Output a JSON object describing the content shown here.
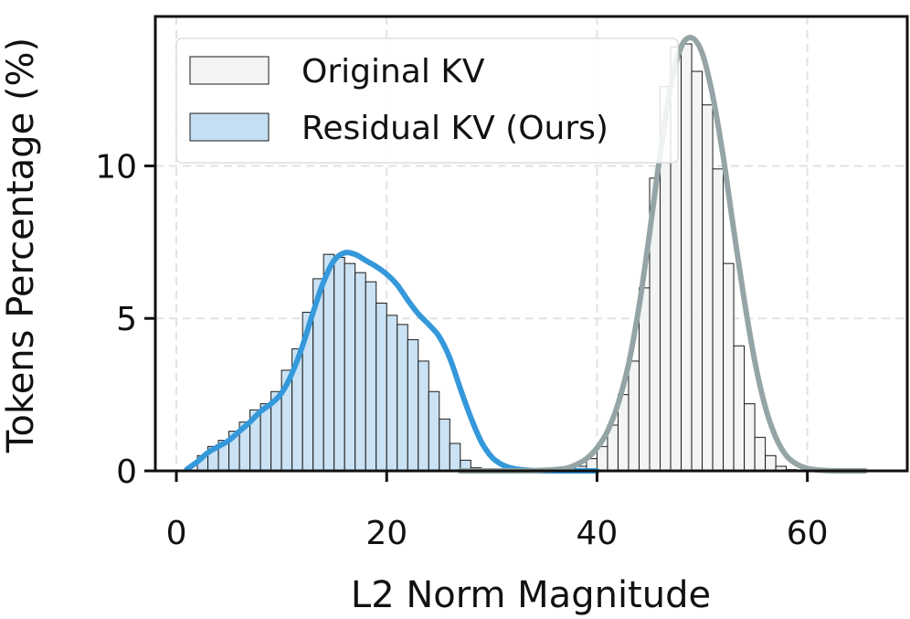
{
  "chart_data": {
    "type": "bar",
    "title": "",
    "xlabel": "L2 Norm Magnitude",
    "ylabel": "Tokens Percentage (%)",
    "xlim": [
      -2,
      69.5
    ],
    "ylim": [
      0,
      14.9
    ],
    "xticks": [
      0,
      20,
      40,
      60
    ],
    "xtick_labels": [
      "0",
      "20",
      "40",
      "60"
    ],
    "yticks": [
      0,
      5,
      10
    ],
    "ytick_labels": [
      "0",
      "5",
      "10"
    ],
    "grid": true,
    "legend_position": "top-left",
    "bin_width": 1,
    "series": [
      {
        "name": "Original KV",
        "color": "#f2f4f4",
        "edge_color": "#1a1a1a",
        "curve_color": "#95a5a6",
        "bin_start": 37,
        "values": [
          0.05,
          0.15,
          0.4,
          0.8,
          1.5,
          2.5,
          3.6,
          6.0,
          9.6,
          12.6,
          13.9,
          14.0,
          13.1,
          12.0,
          9.9,
          6.8,
          4.1,
          2.2,
          1.1,
          0.5,
          0.15,
          0.04
        ]
      },
      {
        "name": "Residual KV (Ours)",
        "color": "#c5dff2",
        "edge_color": "#1a1a1a",
        "curve_color": "#3498db",
        "bin_start": 2,
        "values": [
          0.5,
          0.8,
          1.0,
          1.3,
          1.6,
          2.0,
          2.2,
          2.6,
          3.3,
          4.0,
          5.2,
          6.3,
          7.1,
          7.0,
          6.8,
          6.5,
          6.2,
          5.5,
          5.1,
          4.8,
          4.3,
          3.6,
          2.6,
          1.7,
          0.9,
          0.35,
          0.1
        ]
      }
    ],
    "curves": [
      {
        "series": "Residual KV (Ours)",
        "x": [
          1,
          2,
          3,
          4,
          5,
          6,
          7,
          8,
          9,
          10,
          11,
          12,
          13,
          14,
          15,
          16,
          17,
          18,
          19,
          20,
          21,
          22,
          23,
          24,
          25,
          26,
          27,
          28,
          29,
          30,
          31,
          32,
          33,
          34,
          35,
          36,
          37,
          38,
          39,
          40
        ],
        "y": [
          0.05,
          0.3,
          0.6,
          0.8,
          1.0,
          1.3,
          1.6,
          1.95,
          2.2,
          2.55,
          3.2,
          4.1,
          5.2,
          6.2,
          6.9,
          7.15,
          7.1,
          6.9,
          6.7,
          6.45,
          6.1,
          5.6,
          5.15,
          4.8,
          4.4,
          3.7,
          2.7,
          1.75,
          0.95,
          0.45,
          0.2,
          0.08,
          0.03,
          0.01,
          0.0,
          0.0,
          0.0,
          0.0,
          0.0,
          0.0
        ]
      },
      {
        "series": "Original KV",
        "x": [
          27,
          30,
          33,
          35,
          37,
          38,
          39,
          40,
          41,
          42,
          43,
          44,
          45,
          46,
          47,
          48,
          49,
          50,
          51,
          52,
          53,
          54,
          55,
          56,
          57,
          58,
          59,
          60,
          61,
          62,
          63,
          64,
          65.5
        ],
        "y": [
          0.0,
          0.0,
          0.0,
          0.02,
          0.08,
          0.2,
          0.4,
          0.75,
          1.3,
          2.2,
          3.5,
          5.4,
          7.8,
          10.4,
          12.6,
          13.9,
          14.2,
          13.7,
          12.3,
          10.3,
          7.9,
          5.6,
          3.6,
          2.1,
          1.1,
          0.5,
          0.22,
          0.08,
          0.03,
          0.01,
          0.0,
          0.0,
          0.0
        ]
      }
    ]
  }
}
